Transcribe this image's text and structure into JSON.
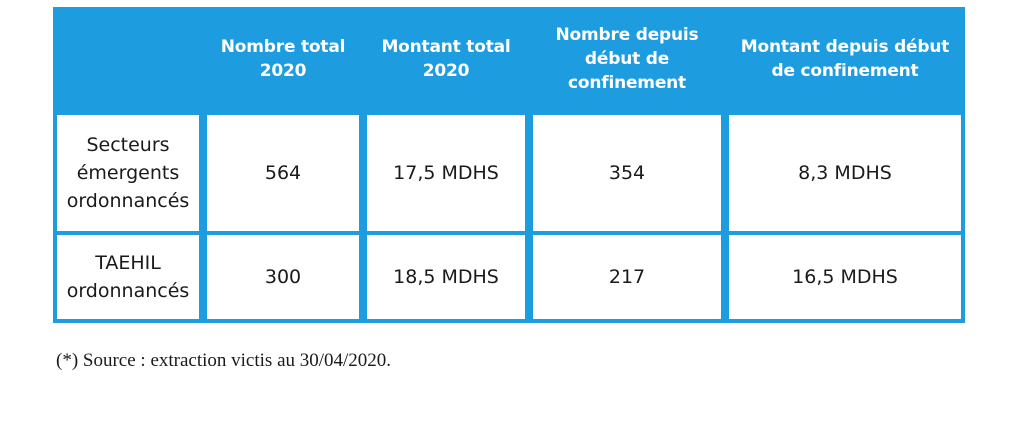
{
  "table": {
    "headers": [
      "",
      "Nombre total 2020",
      "Montant total 2020",
      "Nombre depuis début de confinement",
      "Montant depuis début de confinement"
    ],
    "header_lines": {
      "col1": [
        "Nombre total",
        "2020"
      ],
      "col2": [
        "Montant total",
        "2020"
      ],
      "col3": [
        "Nombre depuis",
        "début de",
        "confinement"
      ],
      "col4": [
        "Montant depuis début",
        "de confinement"
      ]
    },
    "rows": [
      {
        "label": "Secteurs émergents ordonnancés",
        "label_lines": [
          "Secteurs",
          "émergents",
          "ordonnancés"
        ],
        "nombre_total": "564",
        "montant_total": "17,5 MDHS",
        "nombre_confinement": "354",
        "montant_confinement": "8,3 MDHS"
      },
      {
        "label": "TAEHIL ordonnancés",
        "label_lines": [
          "TAEHIL",
          "ordonnancés"
        ],
        "nombre_total": "300",
        "montant_total": "18,5 MDHS",
        "nombre_confinement": "217",
        "montant_confinement": "16,5 MDHS"
      }
    ],
    "colors": {
      "header_bg": "#1e9ce0",
      "header_text": "#ffffff",
      "cell_bg": "#ffffff",
      "text": "#1a1a1a"
    }
  },
  "footnote": "(*) Source : extraction victis au 30/04/2020."
}
